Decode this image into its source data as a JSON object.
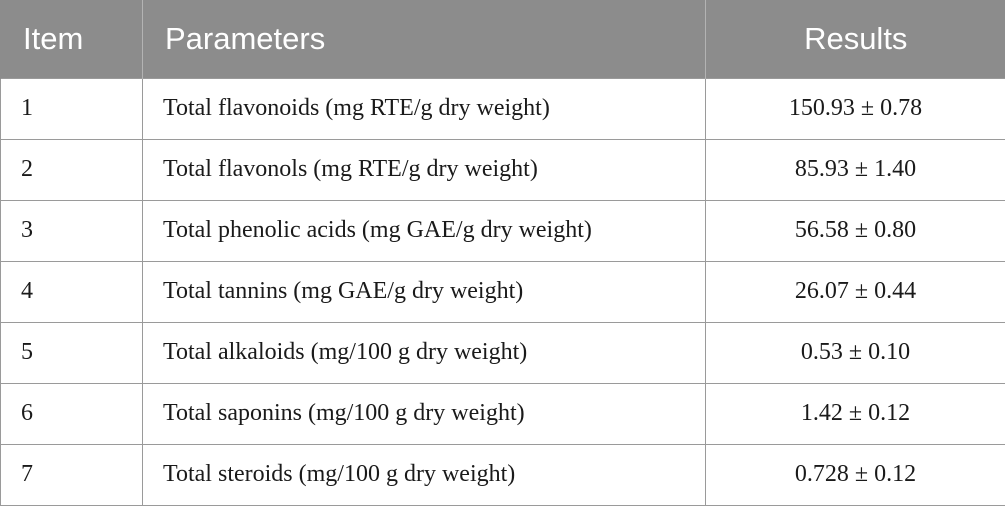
{
  "table": {
    "headers": {
      "item": "Item",
      "parameters": "Parameters",
      "results": "Results"
    },
    "rows": [
      {
        "item": "1",
        "parameter": "Total flavonoids (mg RTE/g dry weight)",
        "result": "150.93 ± 0.78"
      },
      {
        "item": "2",
        "parameter": "Total flavonols (mg RTE/g dry weight)",
        "result": "85.93 ± 1.40"
      },
      {
        "item": "3",
        "parameter": "Total phenolic acids (mg GAE/g dry weight)",
        "result": "56.58 ± 0.80"
      },
      {
        "item": "4",
        "parameter": "Total tannins (mg GAE/g dry weight)",
        "result": "26.07 ± 0.44"
      },
      {
        "item": "5",
        "parameter": "Total alkaloids (mg/100 g dry weight)",
        "result": "0.53 ± 0.10"
      },
      {
        "item": "6",
        "parameter": "Total saponins (mg/100 g dry weight)",
        "result": "1.42 ± 0.12"
      },
      {
        "item": "7",
        "parameter": "Total steroids (mg/100 g dry weight)",
        "result": "0.728 ± 0.12"
      }
    ]
  }
}
